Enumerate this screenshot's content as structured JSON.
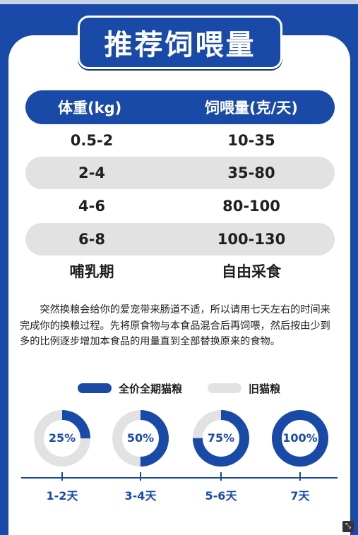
{
  "title": "推荐饲喂量",
  "table": {
    "headers": [
      "体重(kg)",
      "饲喂量(克/天)"
    ],
    "rows": [
      [
        "0.5-2",
        "10-35"
      ],
      [
        "2-4",
        "35-80"
      ],
      [
        "4-6",
        "80-100"
      ],
      [
        "6-8",
        "100-130"
      ],
      [
        "哺乳期",
        "自由采食"
      ]
    ]
  },
  "description": "突然换粮会给你的爱宠带来肠道不适，所以请用七天左右的时间来完成你的换粮过程。先将原食物与本食品混合后再饲喂，然后按由少到多的比例逐步增加本食品的用量直到全部替换原来的食物。",
  "legend": {
    "new_food": "全价全期猫粮",
    "old_food": "旧猫粮"
  },
  "colors": {
    "primary": "#1a4aa8",
    "old": "#e2e2e2"
  },
  "transition": [
    {
      "percent": 25,
      "label": "25%",
      "step": "1-2天"
    },
    {
      "percent": 50,
      "label": "50%",
      "step": "3-4天"
    },
    {
      "percent": 75,
      "label": "75%",
      "step": "5-6天"
    },
    {
      "percent": 100,
      "label": "100%",
      "step": "7天"
    }
  ]
}
